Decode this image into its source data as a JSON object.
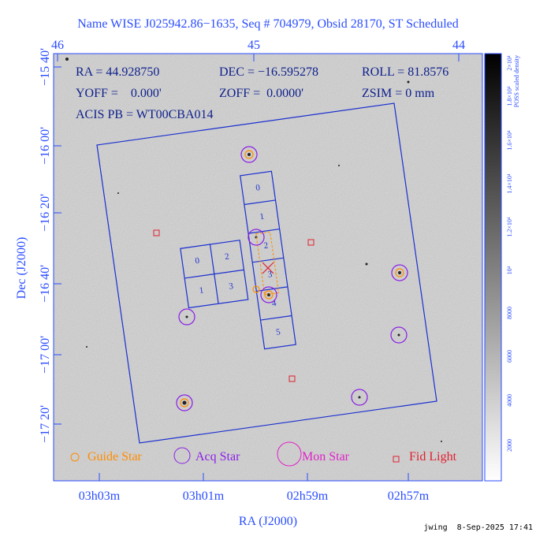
{
  "title": "Name WISE J025942.86−1635, Seq # 704979, Obsid 28170, ST Scheduled",
  "top_axis": {
    "labels": [
      "46",
      "45",
      "44"
    ]
  },
  "left_axis": {
    "title": "Dec (J2000)",
    "labels": [
      "−15 40'",
      "−16 00'",
      "−16 20'",
      "−16 40'",
      "−17 00'",
      "−17 20'"
    ]
  },
  "bottom_axis": {
    "title": "RA (J2000)",
    "labels": [
      "03h03m",
      "03h01m",
      "02h59m",
      "02h57m"
    ]
  },
  "info": {
    "ra": "RA = 44.928750",
    "dec": "DEC = −16.595278",
    "roll": "ROLL = 81.8576",
    "yoff": "YOFF =    0.000'",
    "zoff": "ZOFF =  0.0000'",
    "zsim": "ZSIM = 0 mm",
    "acis": "ACIS PB = WT00CBA014"
  },
  "chips": {
    "acis_s": [
      "0",
      "1",
      "2",
      "3",
      "4",
      "5"
    ],
    "acis_i": [
      "0",
      "2",
      "1",
      "3"
    ]
  },
  "legend": [
    "Guide Star",
    "Acq Star",
    "Mon Star",
    "Fid Light"
  ],
  "colorbar": {
    "title": "POSS scaled density",
    "labels": [
      "2000",
      "4000",
      "6000",
      "8000",
      "10⁴",
      "1.2×10⁴",
      "1.4×10⁴",
      "1.6×10⁴",
      "1.8×10⁴",
      "2×10⁴"
    ]
  },
  "footer": "jwing  8-Sep-2025 17:41"
}
